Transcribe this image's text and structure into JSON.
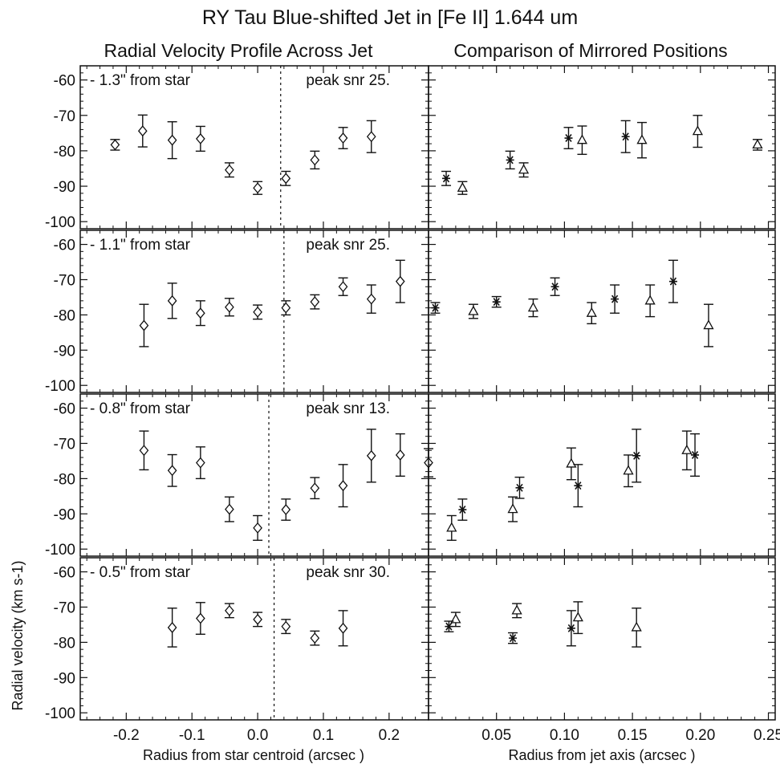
{
  "figure": {
    "title": "RY Tau Blue-shifted Jet in [Fe II] 1.644 um",
    "left_heading": "Radial Velocity Profile Across Jet",
    "right_heading": "Comparison of Mirrored Positions",
    "ylabel": "Radial velocity (km s-1)",
    "left_xlabel": "Radius from star centroid (arcsec )",
    "right_xlabel": "Radius from jet axis (arcsec )"
  },
  "chart_data": [
    {
      "type": "scatter",
      "panel": "left-1",
      "annotation": "- 1.3\" from star",
      "snr_label": "peak snr 25.",
      "xlim": [
        -0.27,
        0.26
      ],
      "ylim": [
        -102,
        -56
      ],
      "centerline_x": 0.035,
      "points": [
        {
          "x": -0.217,
          "y": -78.3,
          "err": 1.5
        },
        {
          "x": -0.175,
          "y": -74.4,
          "err": 4.5
        },
        {
          "x": -0.13,
          "y": -77.0,
          "err": 5.2
        },
        {
          "x": -0.087,
          "y": -76.6,
          "err": 3.5
        },
        {
          "x": -0.043,
          "y": -85.4,
          "err": 2.0
        },
        {
          "x": 0.0,
          "y": -90.5,
          "err": 1.8
        },
        {
          "x": 0.043,
          "y": -87.8,
          "err": 2.0
        },
        {
          "x": 0.087,
          "y": -82.6,
          "err": 2.5
        },
        {
          "x": 0.13,
          "y": -76.4,
          "err": 3.0
        },
        {
          "x": 0.173,
          "y": -76.0,
          "err": 4.5
        }
      ]
    },
    {
      "type": "scatter",
      "panel": "left-2",
      "annotation": "- 1.1\" from star",
      "snr_label": "peak snr 25.",
      "xlim": [
        -0.27,
        0.26
      ],
      "ylim": [
        -102,
        -56
      ],
      "centerline_x": 0.04,
      "points": [
        {
          "x": -0.173,
          "y": -83.0,
          "err": 6.0
        },
        {
          "x": -0.13,
          "y": -76.0,
          "err": 5.0
        },
        {
          "x": -0.087,
          "y": -79.5,
          "err": 3.5
        },
        {
          "x": -0.043,
          "y": -77.8,
          "err": 2.5
        },
        {
          "x": 0.0,
          "y": -79.2,
          "err": 2.0
        },
        {
          "x": 0.043,
          "y": -78.0,
          "err": 2.0
        },
        {
          "x": 0.087,
          "y": -76.3,
          "err": 2.0
        },
        {
          "x": 0.13,
          "y": -72.0,
          "err": 2.5
        },
        {
          "x": 0.173,
          "y": -75.5,
          "err": 4.0
        },
        {
          "x": 0.217,
          "y": -70.5,
          "err": 6.0
        }
      ]
    },
    {
      "type": "scatter",
      "panel": "left-3",
      "annotation": "- 0.8\" from star",
      "snr_label": "peak snr 13.",
      "xlim": [
        -0.27,
        0.26
      ],
      "ylim": [
        -102,
        -56
      ],
      "centerline_x": 0.017,
      "points": [
        {
          "x": -0.173,
          "y": -72.0,
          "err": 5.5
        },
        {
          "x": -0.13,
          "y": -77.7,
          "err": 4.5
        },
        {
          "x": -0.087,
          "y": -75.5,
          "err": 4.5
        },
        {
          "x": -0.043,
          "y": -88.7,
          "err": 3.5
        },
        {
          "x": 0.0,
          "y": -94.0,
          "err": 3.5
        },
        {
          "x": 0.043,
          "y": -88.8,
          "err": 3.0
        },
        {
          "x": 0.087,
          "y": -82.7,
          "err": 3.0
        },
        {
          "x": 0.13,
          "y": -82.0,
          "err": 6.0
        },
        {
          "x": 0.173,
          "y": -73.5,
          "err": 7.5
        },
        {
          "x": 0.217,
          "y": -73.3,
          "err": 6.0
        },
        {
          "x": 0.26,
          "y": -75.5,
          "err": 4.0
        }
      ]
    },
    {
      "type": "scatter",
      "panel": "left-4",
      "annotation": "- 0.5\" from star",
      "snr_label": "peak snr 30.",
      "xlim": [
        -0.27,
        0.26
      ],
      "ylim": [
        -102,
        -56
      ],
      "centerline_x": 0.025,
      "xticks": [
        -0.2,
        -0.1,
        0.0,
        0.1,
        0.2
      ],
      "xtick_labels": [
        "-0.2",
        "-0.1",
        "0.0",
        "0.1",
        "0.2"
      ],
      "points": [
        {
          "x": -0.13,
          "y": -75.8,
          "err": 5.5
        },
        {
          "x": -0.087,
          "y": -73.2,
          "err": 4.5
        },
        {
          "x": -0.043,
          "y": -71.0,
          "err": 2.0
        },
        {
          "x": 0.0,
          "y": -73.5,
          "err": 2.0
        },
        {
          "x": 0.043,
          "y": -75.5,
          "err": 2.0
        },
        {
          "x": 0.087,
          "y": -78.8,
          "err": 2.0
        },
        {
          "x": 0.13,
          "y": -76.0,
          "err": 5.0
        }
      ]
    },
    {
      "type": "scatter",
      "panel": "right-1",
      "xlim": [
        0.0,
        0.255
      ],
      "ylim": [
        -102,
        -56
      ],
      "triangles": [
        {
          "x": 0.025,
          "y": -90.5,
          "err": 1.8
        },
        {
          "x": 0.07,
          "y": -85.4,
          "err": 2.0
        },
        {
          "x": 0.113,
          "y": -77.0,
          "err": 4.0
        },
        {
          "x": 0.157,
          "y": -77.0,
          "err": 5.0
        },
        {
          "x": 0.198,
          "y": -74.5,
          "err": 4.5
        },
        {
          "x": 0.242,
          "y": -78.3,
          "err": 1.5
        }
      ],
      "stars": [
        {
          "x": 0.013,
          "y": -87.8,
          "err": 2.0
        },
        {
          "x": 0.06,
          "y": -82.6,
          "err": 2.5
        },
        {
          "x": 0.103,
          "y": -76.4,
          "err": 3.0
        },
        {
          "x": 0.145,
          "y": -76.0,
          "err": 4.5
        }
      ]
    },
    {
      "type": "scatter",
      "panel": "right-2",
      "xlim": [
        0.0,
        0.255
      ],
      "ylim": [
        -102,
        -56
      ],
      "triangles": [
        {
          "x": 0.033,
          "y": -79.0,
          "err": 2.0
        },
        {
          "x": 0.077,
          "y": -78.0,
          "err": 2.5
        },
        {
          "x": 0.12,
          "y": -79.5,
          "err": 3.0
        },
        {
          "x": 0.163,
          "y": -76.0,
          "err": 4.5
        },
        {
          "x": 0.206,
          "y": -83.0,
          "err": 6.0
        }
      ],
      "stars": [
        {
          "x": 0.005,
          "y": -78.0,
          "err": 1.5
        },
        {
          "x": 0.05,
          "y": -76.3,
          "err": 1.5
        },
        {
          "x": 0.093,
          "y": -72.0,
          "err": 2.5
        },
        {
          "x": 0.137,
          "y": -75.5,
          "err": 4.0
        },
        {
          "x": 0.18,
          "y": -70.5,
          "err": 6.0
        }
      ]
    },
    {
      "type": "scatter",
      "panel": "right-3",
      "xlim": [
        0.0,
        0.255
      ],
      "ylim": [
        -102,
        -56
      ],
      "triangles": [
        {
          "x": 0.017,
          "y": -94.0,
          "err": 3.5
        },
        {
          "x": 0.062,
          "y": -88.7,
          "err": 3.5
        },
        {
          "x": 0.105,
          "y": -75.8,
          "err": 4.5
        },
        {
          "x": 0.147,
          "y": -77.8,
          "err": 4.5
        },
        {
          "x": 0.19,
          "y": -72.0,
          "err": 5.5
        }
      ],
      "stars": [
        {
          "x": 0.025,
          "y": -88.8,
          "err": 3.0
        },
        {
          "x": 0.067,
          "y": -82.6,
          "err": 3.0
        },
        {
          "x": 0.11,
          "y": -82.0,
          "err": 6.0
        },
        {
          "x": 0.153,
          "y": -73.5,
          "err": 7.5
        },
        {
          "x": 0.196,
          "y": -73.3,
          "err": 6.0
        }
      ]
    },
    {
      "type": "scatter",
      "panel": "right-4",
      "xlim": [
        0.0,
        0.255
      ],
      "ylim": [
        -102,
        -56
      ],
      "xticks": [
        0.05,
        0.1,
        0.15,
        0.2,
        0.25
      ],
      "xtick_labels": [
        "0.05",
        "0.10",
        "0.15",
        "0.20",
        "0.25"
      ],
      "triangles": [
        {
          "x": 0.02,
          "y": -73.5,
          "err": 2.0
        },
        {
          "x": 0.065,
          "y": -71.0,
          "err": 2.0
        },
        {
          "x": 0.11,
          "y": -73.0,
          "err": 4.5
        },
        {
          "x": 0.153,
          "y": -75.8,
          "err": 5.5
        }
      ],
      "stars": [
        {
          "x": 0.015,
          "y": -75.5,
          "err": 1.5
        },
        {
          "x": 0.062,
          "y": -78.8,
          "err": 1.5
        },
        {
          "x": 0.105,
          "y": -76.0,
          "err": 5.0
        }
      ]
    }
  ],
  "yticks": [
    -60,
    -70,
    -80,
    -90,
    -100
  ],
  "ytick_labels": [
    "-60",
    "-70",
    "-80",
    "-90",
    "-100"
  ],
  "colors": {
    "ink": "#111111",
    "background": "#ffffff"
  }
}
